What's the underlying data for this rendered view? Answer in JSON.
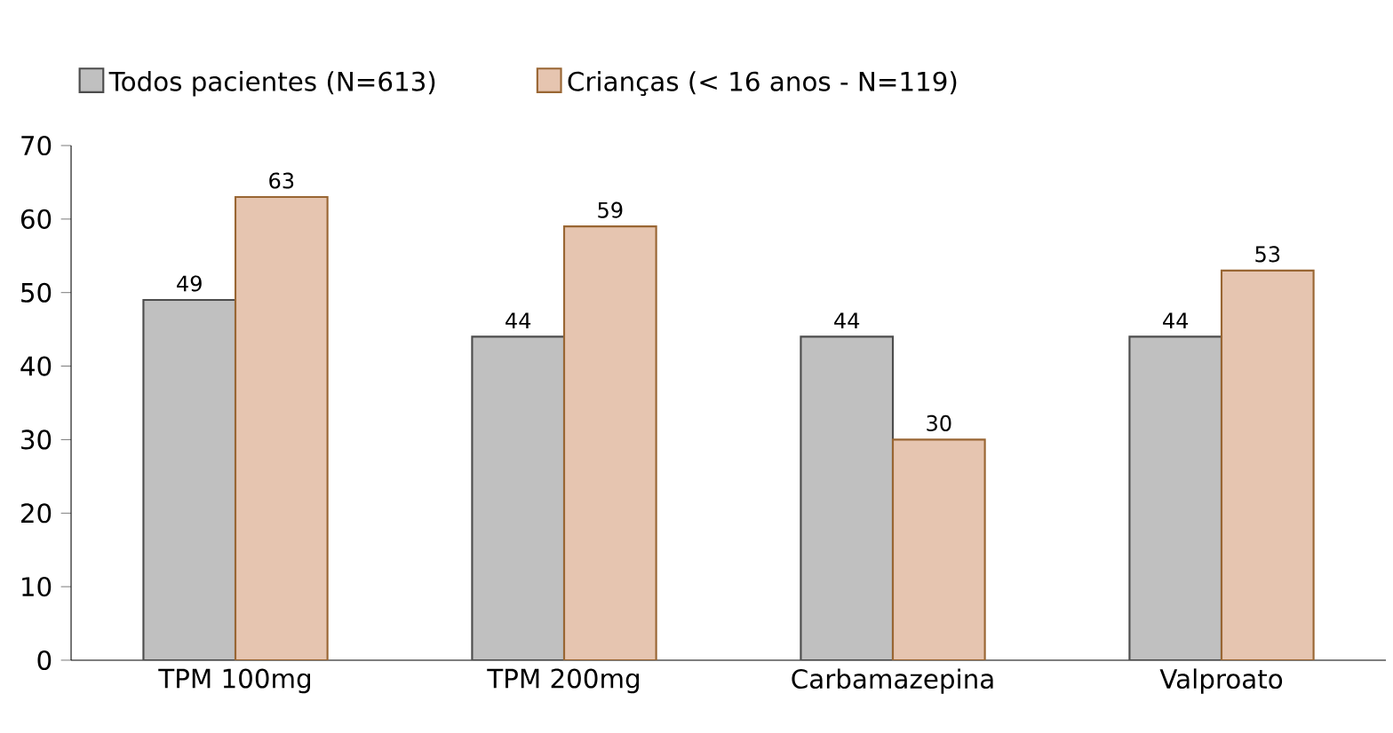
{
  "chart_data": {
    "type": "bar",
    "categories": [
      "TPM 100mg",
      "TPM 200mg",
      "Carbamazepina",
      "Valproato"
    ],
    "series": [
      {
        "name": "Todos pacientes (N=613)",
        "color": "#c0c0c0",
        "values": [
          49,
          44,
          44,
          44
        ]
      },
      {
        "name": "Crianças (< 16 anos - N=119)",
        "color": "#e6c5b0",
        "values": [
          63,
          59,
          30,
          53
        ]
      }
    ],
    "ylim": [
      0,
      70
    ],
    "yticks": [
      0,
      10,
      20,
      30,
      40,
      50,
      60,
      70
    ],
    "data_labels": true,
    "legend": "top left",
    "grid": false
  }
}
